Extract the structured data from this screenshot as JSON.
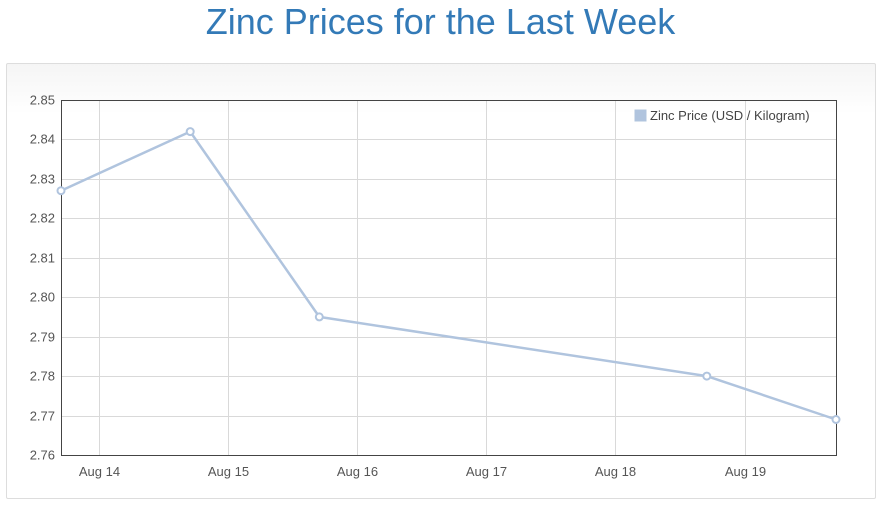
{
  "page": {
    "title": "Zinc Prices for the Last Week"
  },
  "colors": {
    "title": "#337ab7",
    "series": "#b0c4de",
    "grid": "#d9d9d9",
    "axis": "#444444"
  },
  "chart_data": {
    "type": "line",
    "title": "",
    "xlabel": "",
    "ylabel": "",
    "x_ticks": [
      "Aug 14",
      "Aug 15",
      "Aug 16",
      "Aug 17",
      "Aug 18",
      "Aug 19"
    ],
    "y_ticks": [
      "2.76",
      "2.77",
      "2.78",
      "2.79",
      "2.80",
      "2.81",
      "2.82",
      "2.83",
      "2.84",
      "2.85"
    ],
    "ylim": [
      2.76,
      2.85
    ],
    "xlim": [
      "2024-08-13T17:00",
      "2024-08-19T17:00"
    ],
    "grid": true,
    "legend_position": "top-right",
    "series": [
      {
        "name": "Zinc Price (USD / Kilogram)",
        "points": [
          {
            "x": "2024-08-13T17:00",
            "y": 2.827
          },
          {
            "x": "2024-08-14T17:00",
            "y": 2.842
          },
          {
            "x": "2024-08-15T17:00",
            "y": 2.795
          },
          {
            "x": "2024-08-18T17:00",
            "y": 2.78
          },
          {
            "x": "2024-08-19T17:00",
            "y": 2.769
          }
        ]
      }
    ]
  }
}
